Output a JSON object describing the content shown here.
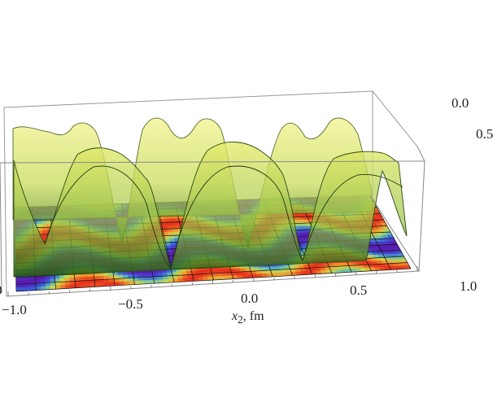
{
  "chart_data": {
    "type": "surface3d",
    "title": "",
    "xlabel": "x2, fm",
    "xlabel_var": "x",
    "xlabel_sub": "2",
    "xlabel_unit": ", fm",
    "xlim": [
      -1.0,
      1.0
    ],
    "x_ticks": [
      "−1.0",
      "−0.5",
      "0.0",
      "0.5",
      "1.0"
    ],
    "y_ticks_visible": [
      "0.0",
      "0.5"
    ],
    "left_tick_partial": "0",
    "surface_color": "#d8e24a",
    "floor_colormap": [
      "#e8321e",
      "#f0a030",
      "#c8d850",
      "#60c0b0",
      "#3a5ce0",
      "#5a1ab0"
    ],
    "grid": true
  }
}
